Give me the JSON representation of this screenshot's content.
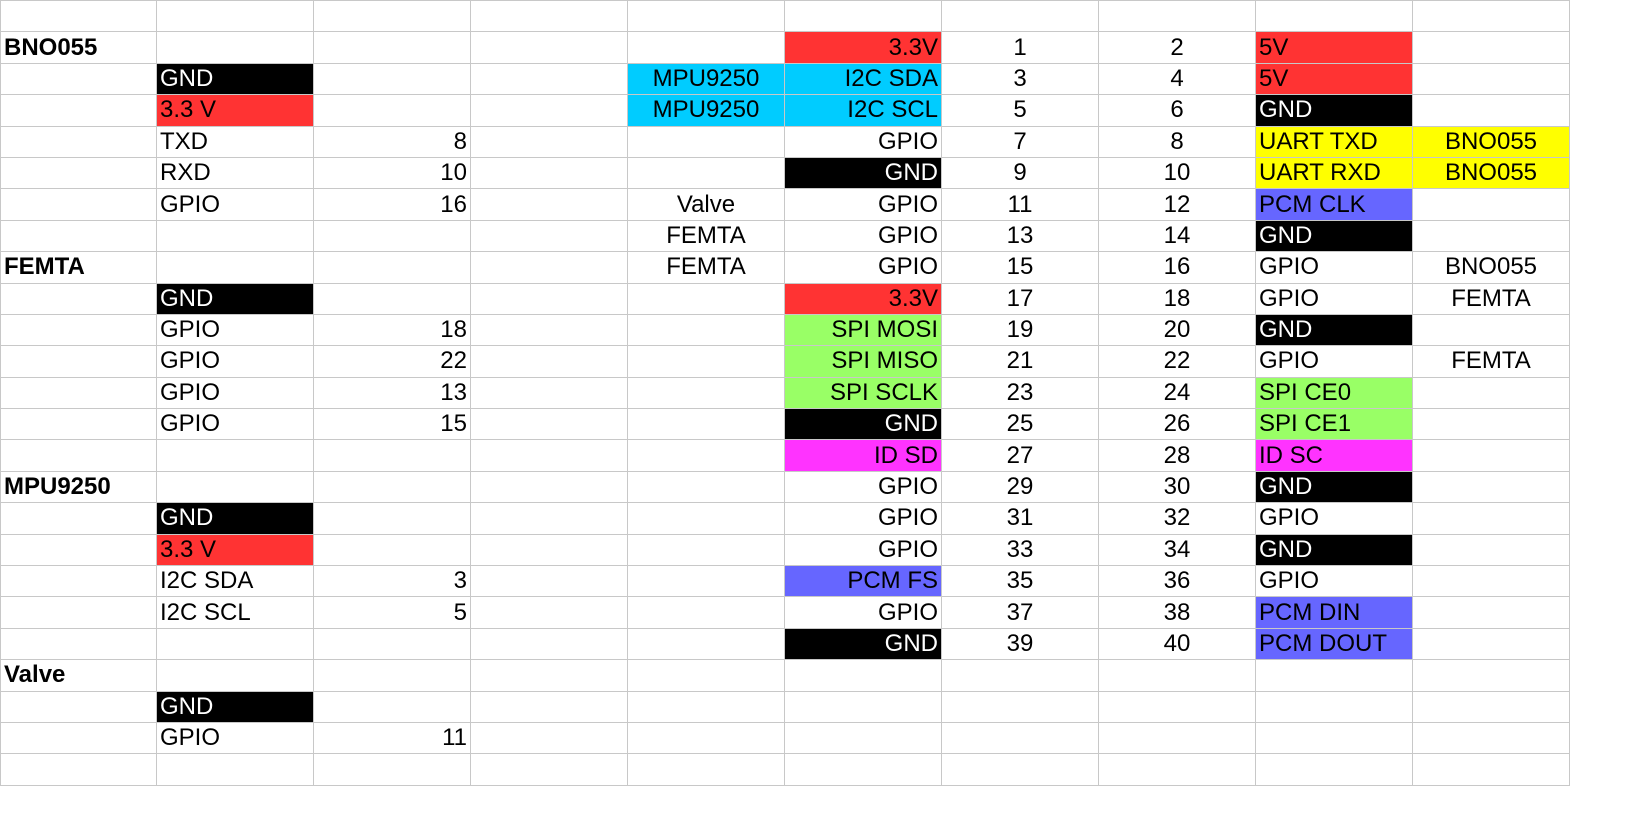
{
  "colors": {
    "red": "#ff3333",
    "black": "#000000",
    "cyan": "#00ccff",
    "yellow": "#ffff00",
    "green": "#99ff66",
    "magenta": "#ff33ff",
    "blue": "#6666ff",
    "white": "#ffffff",
    "grid": "#c8c8c8"
  },
  "rows": [
    [
      {},
      {},
      {},
      {},
      {},
      {},
      {},
      {},
      {},
      {}
    ],
    [
      {
        "t": "BNO055",
        "b": 1
      },
      {},
      {},
      {},
      {},
      {
        "t": "3.3V",
        "bg": "red",
        "a": "r"
      },
      {
        "t": "1",
        "a": "c"
      },
      {
        "t": "2",
        "a": "c"
      },
      {
        "t": "5V",
        "bg": "red"
      },
      {}
    ],
    [
      {},
      {
        "t": "GND",
        "bg": "black",
        "fg": "white"
      },
      {},
      {},
      {
        "t": "MPU9250",
        "bg": "cyan",
        "a": "c"
      },
      {
        "t": "I2C SDA",
        "bg": "cyan",
        "a": "r"
      },
      {
        "t": "3",
        "a": "c"
      },
      {
        "t": "4",
        "a": "c"
      },
      {
        "t": "5V",
        "bg": "red"
      },
      {}
    ],
    [
      {},
      {
        "t": "3.3 V",
        "bg": "red"
      },
      {},
      {},
      {
        "t": "MPU9250",
        "bg": "cyan",
        "a": "c"
      },
      {
        "t": "I2C SCL",
        "bg": "cyan",
        "a": "r"
      },
      {
        "t": "5",
        "a": "c"
      },
      {
        "t": "6",
        "a": "c"
      },
      {
        "t": "GND",
        "bg": "black",
        "fg": "white"
      },
      {}
    ],
    [
      {},
      {
        "t": "TXD"
      },
      {
        "t": "8",
        "a": "r"
      },
      {},
      {},
      {
        "t": "GPIO",
        "a": "r"
      },
      {
        "t": "7",
        "a": "c"
      },
      {
        "t": "8",
        "a": "c"
      },
      {
        "t": "UART TXD",
        "bg": "yellow"
      },
      {
        "t": "BNO055",
        "bg": "yellow",
        "a": "c"
      }
    ],
    [
      {},
      {
        "t": "RXD"
      },
      {
        "t": "10",
        "a": "r"
      },
      {},
      {},
      {
        "t": "GND",
        "bg": "black",
        "fg": "white",
        "a": "r"
      },
      {
        "t": "9",
        "a": "c"
      },
      {
        "t": "10",
        "a": "c"
      },
      {
        "t": "UART RXD",
        "bg": "yellow"
      },
      {
        "t": "BNO055",
        "bg": "yellow",
        "a": "c"
      }
    ],
    [
      {},
      {
        "t": "GPIO"
      },
      {
        "t": "16",
        "a": "r"
      },
      {},
      {
        "t": "Valve",
        "a": "c"
      },
      {
        "t": "GPIO",
        "a": "r"
      },
      {
        "t": "11",
        "a": "c"
      },
      {
        "t": "12",
        "a": "c"
      },
      {
        "t": "PCM CLK",
        "bg": "blue"
      },
      {}
    ],
    [
      {},
      {},
      {},
      {},
      {
        "t": "FEMTA",
        "a": "c"
      },
      {
        "t": "GPIO",
        "a": "r"
      },
      {
        "t": "13",
        "a": "c"
      },
      {
        "t": "14",
        "a": "c"
      },
      {
        "t": "GND",
        "bg": "black",
        "fg": "white"
      },
      {}
    ],
    [
      {
        "t": "FEMTA",
        "b": 1
      },
      {},
      {},
      {},
      {
        "t": "FEMTA",
        "a": "c"
      },
      {
        "t": "GPIO",
        "a": "r"
      },
      {
        "t": "15",
        "a": "c"
      },
      {
        "t": "16",
        "a": "c"
      },
      {
        "t": "GPIO"
      },
      {
        "t": "BNO055",
        "a": "c"
      }
    ],
    [
      {},
      {
        "t": "GND",
        "bg": "black",
        "fg": "white"
      },
      {},
      {},
      {},
      {
        "t": "3.3V",
        "bg": "red",
        "a": "r"
      },
      {
        "t": "17",
        "a": "c"
      },
      {
        "t": "18",
        "a": "c"
      },
      {
        "t": "GPIO"
      },
      {
        "t": "FEMTA",
        "a": "c"
      }
    ],
    [
      {},
      {
        "t": "GPIO"
      },
      {
        "t": "18",
        "a": "r"
      },
      {},
      {},
      {
        "t": "SPI MOSI",
        "bg": "green",
        "a": "r"
      },
      {
        "t": "19",
        "a": "c"
      },
      {
        "t": "20",
        "a": "c"
      },
      {
        "t": "GND",
        "bg": "black",
        "fg": "white"
      },
      {}
    ],
    [
      {},
      {
        "t": "GPIO"
      },
      {
        "t": "22",
        "a": "r"
      },
      {},
      {},
      {
        "t": "SPI MISO",
        "bg": "green",
        "a": "r"
      },
      {
        "t": "21",
        "a": "c"
      },
      {
        "t": "22",
        "a": "c"
      },
      {
        "t": "GPIO"
      },
      {
        "t": "FEMTA",
        "a": "c"
      }
    ],
    [
      {},
      {
        "t": "GPIO"
      },
      {
        "t": "13",
        "a": "r"
      },
      {},
      {},
      {
        "t": "SPI SCLK",
        "bg": "green",
        "a": "r"
      },
      {
        "t": "23",
        "a": "c"
      },
      {
        "t": "24",
        "a": "c"
      },
      {
        "t": "SPI CE0",
        "bg": "green"
      },
      {}
    ],
    [
      {},
      {
        "t": "GPIO"
      },
      {
        "t": "15",
        "a": "r"
      },
      {},
      {},
      {
        "t": "GND",
        "bg": "black",
        "fg": "white",
        "a": "r"
      },
      {
        "t": "25",
        "a": "c"
      },
      {
        "t": "26",
        "a": "c"
      },
      {
        "t": "SPI CE1",
        "bg": "green"
      },
      {}
    ],
    [
      {},
      {},
      {},
      {},
      {},
      {
        "t": "ID SD",
        "bg": "magenta",
        "a": "r"
      },
      {
        "t": "27",
        "a": "c"
      },
      {
        "t": "28",
        "a": "c"
      },
      {
        "t": "ID SC",
        "bg": "magenta"
      },
      {}
    ],
    [
      {
        "t": "MPU9250",
        "b": 1
      },
      {},
      {},
      {},
      {},
      {
        "t": "GPIO",
        "a": "r"
      },
      {
        "t": "29",
        "a": "c"
      },
      {
        "t": "30",
        "a": "c"
      },
      {
        "t": "GND",
        "bg": "black",
        "fg": "white"
      },
      {}
    ],
    [
      {},
      {
        "t": "GND",
        "bg": "black",
        "fg": "white"
      },
      {},
      {},
      {},
      {
        "t": "GPIO",
        "a": "r"
      },
      {
        "t": "31",
        "a": "c"
      },
      {
        "t": "32",
        "a": "c"
      },
      {
        "t": "GPIO"
      },
      {}
    ],
    [
      {},
      {
        "t": "3.3 V",
        "bg": "red"
      },
      {},
      {},
      {},
      {
        "t": "GPIO",
        "a": "r"
      },
      {
        "t": "33",
        "a": "c"
      },
      {
        "t": "34",
        "a": "c"
      },
      {
        "t": "GND",
        "bg": "black",
        "fg": "white"
      },
      {}
    ],
    [
      {},
      {
        "t": "I2C SDA"
      },
      {
        "t": "3",
        "a": "r"
      },
      {},
      {},
      {
        "t": "PCM FS",
        "bg": "blue",
        "a": "r"
      },
      {
        "t": "35",
        "a": "c"
      },
      {
        "t": "36",
        "a": "c"
      },
      {
        "t": "GPIO"
      },
      {}
    ],
    [
      {},
      {
        "t": "I2C SCL"
      },
      {
        "t": "5",
        "a": "r"
      },
      {},
      {},
      {
        "t": "GPIO",
        "a": "r"
      },
      {
        "t": "37",
        "a": "c"
      },
      {
        "t": "38",
        "a": "c"
      },
      {
        "t": "PCM DIN",
        "bg": "blue"
      },
      {}
    ],
    [
      {},
      {},
      {},
      {},
      {},
      {
        "t": "GND",
        "bg": "black",
        "fg": "white",
        "a": "r"
      },
      {
        "t": "39",
        "a": "c"
      },
      {
        "t": "40",
        "a": "c"
      },
      {
        "t": "PCM DOUT",
        "bg": "blue"
      },
      {}
    ],
    [
      {
        "t": "Valve",
        "b": 1
      },
      {},
      {},
      {},
      {},
      {},
      {},
      {},
      {},
      {}
    ],
    [
      {},
      {
        "t": "GND",
        "bg": "black",
        "fg": "white"
      },
      {},
      {},
      {},
      {},
      {},
      {},
      {},
      {}
    ],
    [
      {},
      {
        "t": "GPIO"
      },
      {
        "t": "11",
        "a": "r"
      },
      {},
      {},
      {},
      {},
      {},
      {},
      {}
    ],
    [
      {},
      {},
      {},
      {},
      {},
      {},
      {},
      {},
      {},
      {}
    ]
  ]
}
